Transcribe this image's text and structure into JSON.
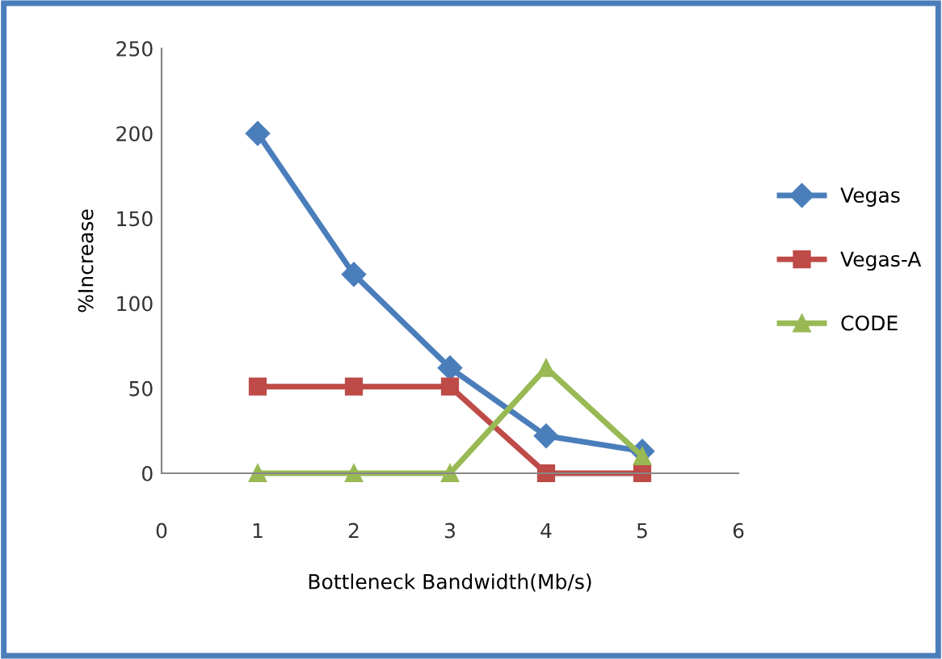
{
  "chart_data": {
    "type": "line",
    "xlabel": "Bottleneck Bandwidth(Mb/s)",
    "ylabel": "%Increase",
    "x": [
      1,
      2,
      3,
      4,
      5
    ],
    "series": [
      {
        "name": "Vegas",
        "color": "#4a7ebb",
        "marker": "diamond",
        "values": [
          200,
          117,
          62,
          22,
          13
        ]
      },
      {
        "name": "Vegas-A",
        "color": "#be4b48",
        "marker": "square",
        "values": [
          51,
          51,
          51,
          0,
          0
        ]
      },
      {
        "name": "CODE",
        "color": "#98b954",
        "marker": "triangle",
        "values": [
          0,
          0,
          0,
          62,
          10
        ]
      }
    ],
    "xlim": [
      0,
      6
    ],
    "xticks": [
      0,
      1,
      2,
      3,
      4,
      5,
      6
    ],
    "ylim": [
      0,
      250
    ],
    "yticks": [
      0,
      50,
      100,
      150,
      200,
      250
    ],
    "grid": false,
    "legend": "right",
    "line_style": "solid"
  }
}
